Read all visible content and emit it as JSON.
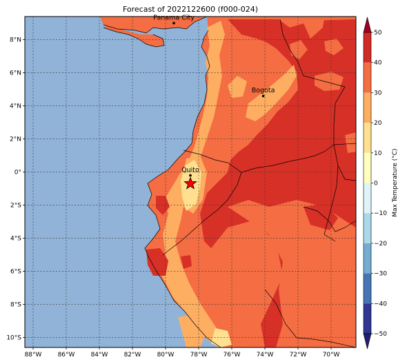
{
  "title": "Forecast of 2022122600 (f000-024)",
  "map": {
    "lon_range": [
      -88.5,
      -68.5
    ],
    "lat_range": [
      -10.6,
      9.4
    ],
    "lon_ticks": [
      {
        "value": -88,
        "label": "88°W"
      },
      {
        "value": -86,
        "label": "86°W"
      },
      {
        "value": -84,
        "label": "84°W"
      },
      {
        "value": -82,
        "label": "82°W"
      },
      {
        "value": -80,
        "label": "80°W"
      },
      {
        "value": -78,
        "label": "78°W"
      },
      {
        "value": -76,
        "label": "76°W"
      },
      {
        "value": -74,
        "label": "74°W"
      },
      {
        "value": -72,
        "label": "72°W"
      },
      {
        "value": -70,
        "label": "70°W"
      }
    ],
    "lat_ticks": [
      {
        "value": 8,
        "label": "8°N"
      },
      {
        "value": 6,
        "label": "6°N"
      },
      {
        "value": 4,
        "label": "4°N"
      },
      {
        "value": 2,
        "label": "2°N"
      },
      {
        "value": 0,
        "label": "0°"
      },
      {
        "value": -2,
        "label": "2°S"
      },
      {
        "value": -4,
        "label": "4°S"
      },
      {
        "value": -6,
        "label": "6°S"
      },
      {
        "value": -8,
        "label": "8°S"
      },
      {
        "value": -10,
        "label": "10°S"
      }
    ],
    "cities": [
      {
        "name": "Panama City",
        "lon": -79.5,
        "lat": 9.0
      },
      {
        "name": "Bogota",
        "lon": -74.1,
        "lat": 4.6
      },
      {
        "name": "Quito",
        "lon": -78.5,
        "lat": -0.2
      }
    ],
    "star": {
      "lon": -78.5,
      "lat": -0.7,
      "color": "#ff0000"
    },
    "ocean_color": "#91b3d7"
  },
  "colorbar": {
    "label": "Max Temperature (°C)",
    "ticks": [
      "50",
      "40",
      "30",
      "20",
      "10",
      "0",
      "−10",
      "−20",
      "−30",
      "−40",
      "−50"
    ],
    "colors": [
      "#9f0026",
      "#d22b26",
      "#f46d43",
      "#fdae61",
      "#fee090",
      "#ffffbf",
      "#e0f3f8",
      "#abd9e9",
      "#74add1",
      "#4575b4",
      "#313695",
      "#202070"
    ]
  }
}
